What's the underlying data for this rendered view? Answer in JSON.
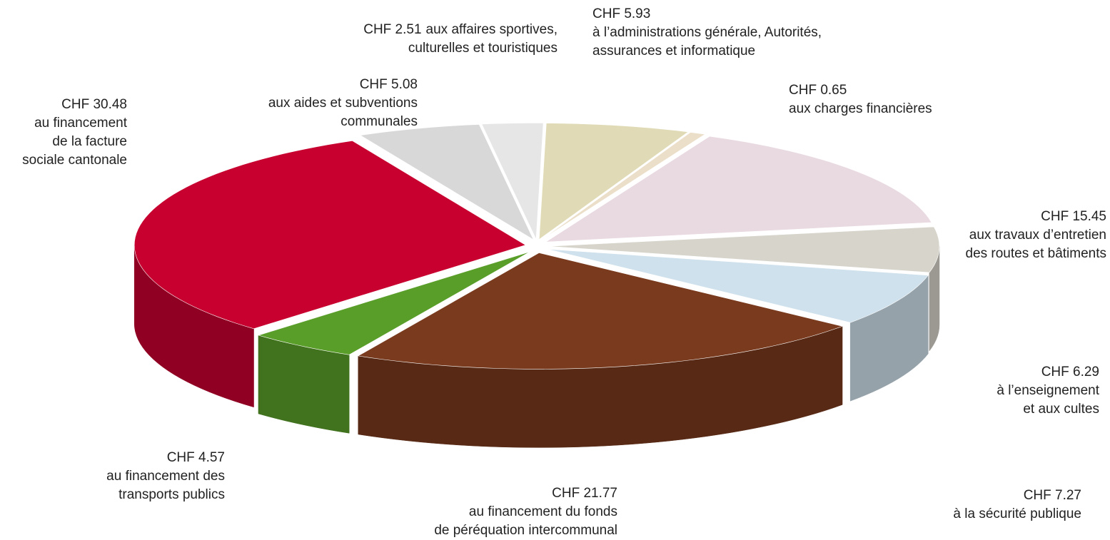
{
  "chart_data": {
    "type": "pie",
    "categories": [
      [
        "au financement",
        "de la facture",
        "sociale cantonale"
      ],
      [
        "aux aides et subventions",
        "communales"
      ],
      [
        "aux affaires sportives,",
        "culturelles et touristiques"
      ],
      [
        "à l’administrations générale, Autorités,",
        "assurances et informatique"
      ],
      [
        "aux charges financières"
      ],
      [
        "aux travaux d’entretien",
        "des routes et bâtiments"
      ],
      [
        "à l’enseignement",
        "et aux cultes"
      ],
      [
        "à la sécurité publique"
      ],
      [
        "au financement du fonds",
        "de péréquation intercommunal"
      ],
      [
        "au financement des",
        "transports publics"
      ]
    ],
    "values": [
      30.48,
      5.08,
      2.51,
      5.93,
      0.65,
      15.45,
      6.29,
      7.27,
      21.77,
      4.57
    ],
    "value_labels": [
      "CHF 30.48",
      "CHF 5.08",
      "CHF 2.51",
      "CHF 5.93",
      "CHF 0.65",
      "CHF 15.45",
      "CHF 6.29",
      "CHF 7.27",
      "CHF 21.77",
      "CHF 4.57"
    ],
    "colors": [
      "#c8002f",
      "#d8d8d8",
      "#e6e6e6",
      "#e0dbb6",
      "#ebdfca",
      "#e9d9e0",
      "#d7d5cb",
      "#cfe1ec",
      "#7a3a1e",
      "#5a9e2a"
    ]
  }
}
